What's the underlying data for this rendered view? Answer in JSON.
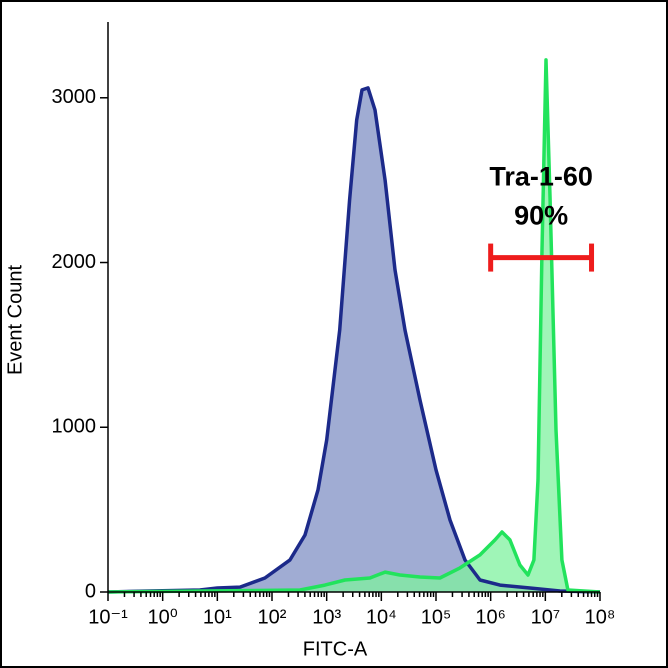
{
  "chart_data": {
    "type": "histogram-overlay",
    "xlabel": "FITC-A",
    "ylabel": "Event Count",
    "xscale": "log",
    "xlim": [
      0.1,
      100000000
    ],
    "ylim": [
      0,
      3460
    ],
    "xticks": [
      {
        "value": 0.1,
        "label": "10⁻¹"
      },
      {
        "value": 1,
        "label": "10⁰"
      },
      {
        "value": 10,
        "label": "10¹"
      },
      {
        "value": 100,
        "label": "10²"
      },
      {
        "value": 1000,
        "label": "10³"
      },
      {
        "value": 10000,
        "label": "10⁴"
      },
      {
        "value": 100000,
        "label": "10⁵"
      },
      {
        "value": 1000000,
        "label": "10⁶"
      },
      {
        "value": 10000000,
        "label": "10⁷"
      },
      {
        "value": 100000000,
        "label": "10⁸"
      }
    ],
    "yticks": [
      0,
      1000,
      2000,
      3000
    ],
    "series": [
      {
        "color": "#1c2a8a",
        "fill": "#8f9dcb",
        "x": [
          0.1,
          0.59,
          4.8,
          10,
          26,
          74,
          213,
          401,
          693,
          1000,
          1730,
          2630,
          3550,
          4430,
          5700,
          7660,
          11700,
          17800,
          27100,
          50900,
          100000,
          180000,
          339000,
          637000,
          1480000,
          5230000,
          18500000,
          100000000
        ],
        "values": [
          0,
          6,
          12,
          24,
          30,
          85,
          195,
          346,
          620,
          923,
          1590,
          2380,
          2866,
          3048,
          3060,
          2926,
          2500,
          1955,
          1590,
          1165,
          741,
          437,
          194,
          73,
          42,
          24,
          6,
          0
        ]
      },
      {
        "color": "#22e35c",
        "fill": "#7ff29f",
        "x": [
          0.1,
          325,
          930,
          2160,
          6190,
          11700,
          21900,
          50900,
          118000,
          275000,
          637000,
          1200000,
          1610000,
          2250000,
          3430000,
          4810000,
          6190000,
          7330000,
          8680000,
          10300000,
          12200000,
          15700000,
          20100000,
          25900000,
          100000000
        ],
        "values": [
          0,
          12,
          42,
          73,
          85,
          121,
          103,
          91,
          85,
          146,
          225,
          316,
          364,
          316,
          164,
          103,
          194,
          680,
          2077,
          3230,
          2380,
          984,
          194,
          12,
          0
        ]
      }
    ],
    "gate": {
      "label": "Tra-1-60",
      "percent": "90%",
      "color": "#ee1c1c",
      "x_range": [
        1000000,
        70000000
      ],
      "y": 2030
    }
  }
}
